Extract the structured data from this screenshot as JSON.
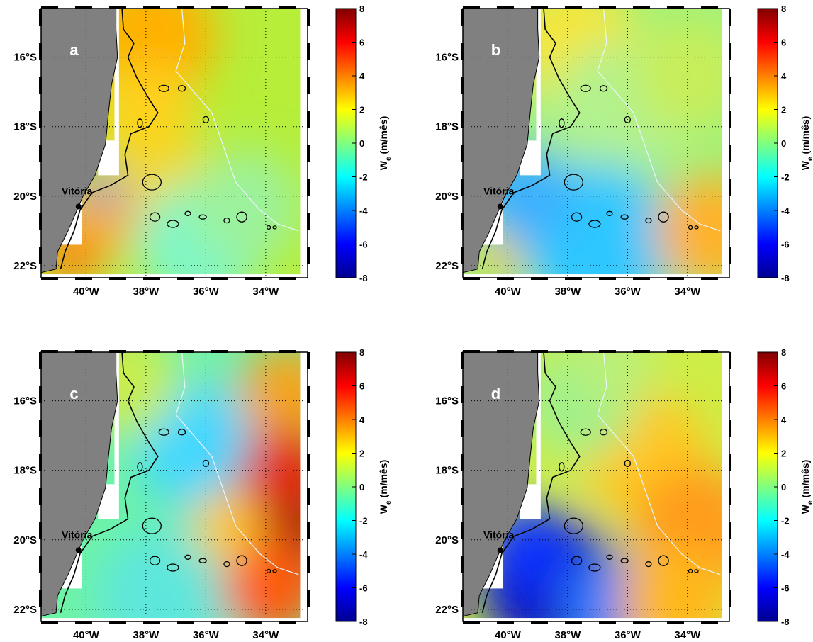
{
  "figure": {
    "colormap": "jet",
    "land_color": "#808080",
    "coastline_color": "#000000",
    "grid_style": "dotted",
    "panels": [
      {
        "letter": "a",
        "pattern": "a"
      },
      {
        "letter": "b",
        "pattern": "b"
      },
      {
        "letter": "c",
        "pattern": "c"
      },
      {
        "letter": "d",
        "pattern": "d"
      }
    ],
    "lat_ticks": [
      "16°S",
      "18°S",
      "20°S",
      "22°S"
    ],
    "lon_ticks": [
      "40°W",
      "38°W",
      "36°W",
      "34°W"
    ],
    "city": {
      "name": "Vitória"
    },
    "colorbar": {
      "min": -8,
      "max": 8,
      "ticks": [
        "8",
        "6",
        "4",
        "2",
        "0",
        "-2",
        "-4",
        "-6",
        "-8"
      ],
      "label": "W",
      "label_subscript": "e",
      "units": "(m/mês)"
    }
  }
}
